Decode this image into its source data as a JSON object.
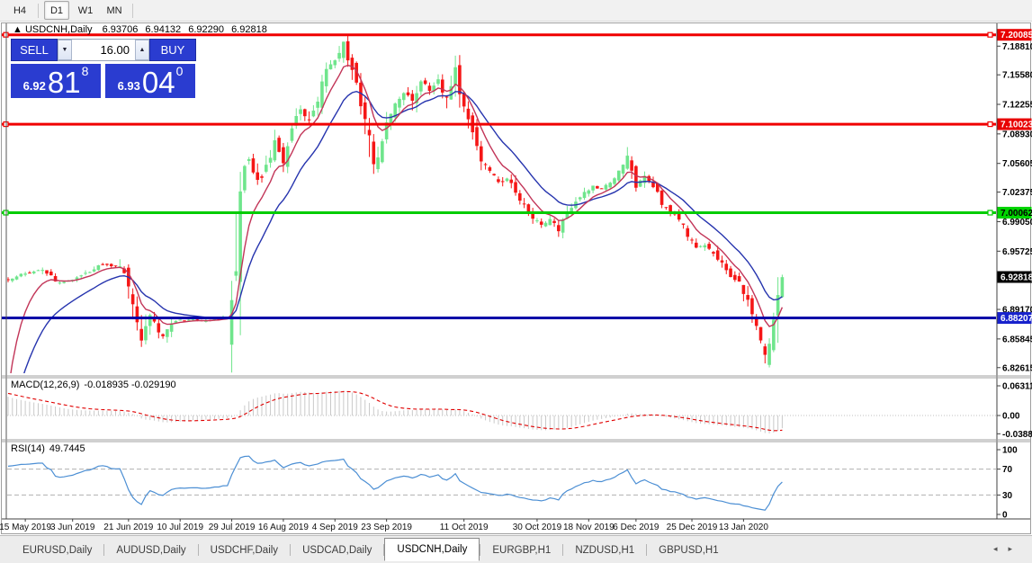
{
  "toolbar": {
    "buttons": [
      {
        "label": "H4",
        "active": false
      },
      {
        "label": "D1",
        "active": true
      },
      {
        "label": "W1",
        "active": false
      },
      {
        "label": "MN",
        "active": false
      }
    ]
  },
  "chart": {
    "title": {
      "arrow": "▲",
      "symbol": "USDCNH,Daily",
      "open": "6.93706",
      "high": "6.94132",
      "low": "6.92290",
      "close": "6.92818"
    }
  },
  "trade_panel": {
    "sell_label": "SELL",
    "buy_label": "BUY",
    "volume": "16.00",
    "spin_down": "▼",
    "spin_up": "▲",
    "sell_price": {
      "prefix": "6.92",
      "big": "81",
      "sup": "8"
    },
    "buy_price": {
      "prefix": "6.93",
      "big": "04",
      "sup": "0"
    }
  },
  "colors": {
    "bull": "#6FE58C",
    "bear": "#F51616",
    "ma_fast": "#C23558",
    "ma_slow": "#2634AE",
    "macd_hist": "#C9C9C9",
    "macd_signal": "#E00000",
    "rsi_line": "#4C8FD4",
    "hline_red": "#F00000",
    "hline_green": "#00CC00",
    "hline_blue": "#0000A8",
    "badge_red": "#E80000",
    "badge_green": "#00D400",
    "badge_blue": "#1822CC",
    "badge_black": "#000000"
  },
  "chart_data": {
    "type": "candlestick",
    "symbol": "USDCNH",
    "timeframe": "Daily",
    "candle_count": 181,
    "ylim": [
      6.82615,
      7.20085
    ],
    "price_waypoints": [
      [
        0,
        6.926
      ],
      [
        4,
        6.932
      ],
      [
        8,
        6.936
      ],
      [
        12,
        6.921
      ],
      [
        16,
        6.927
      ],
      [
        20,
        6.938
      ],
      [
        22,
        6.942
      ],
      [
        26,
        6.939
      ],
      [
        28,
        6.92
      ],
      [
        31,
        6.856
      ],
      [
        33,
        6.887
      ],
      [
        36,
        6.858
      ],
      [
        38,
        6.878
      ],
      [
        42,
        6.88
      ],
      [
        46,
        6.879
      ],
      [
        50,
        6.882
      ],
      [
        52,
        6.886
      ],
      [
        53,
        6.96
      ],
      [
        54,
        7.048
      ],
      [
        56,
        7.058
      ],
      [
        58,
        7.035
      ],
      [
        60,
        7.05
      ],
      [
        62,
        7.078
      ],
      [
        64,
        7.06
      ],
      [
        66,
        7.092
      ],
      [
        68,
        7.118
      ],
      [
        70,
        7.102
      ],
      [
        72,
        7.13
      ],
      [
        74,
        7.158
      ],
      [
        76,
        7.172
      ],
      [
        78,
        7.19
      ],
      [
        80,
        7.162
      ],
      [
        82,
        7.122
      ],
      [
        84,
        7.08
      ],
      [
        85,
        7.048
      ],
      [
        86,
        7.07
      ],
      [
        88,
        7.098
      ],
      [
        90,
        7.12
      ],
      [
        92,
        7.138
      ],
      [
        94,
        7.122
      ],
      [
        96,
        7.15
      ],
      [
        98,
        7.14
      ],
      [
        100,
        7.148
      ],
      [
        102,
        7.13
      ],
      [
        104,
        7.158
      ],
      [
        106,
        7.12
      ],
      [
        108,
        7.09
      ],
      [
        110,
        7.062
      ],
      [
        112,
        7.05
      ],
      [
        114,
        7.032
      ],
      [
        116,
        7.042
      ],
      [
        118,
        7.022
      ],
      [
        120,
        7.01
      ],
      [
        122,
        6.996
      ],
      [
        124,
        6.986
      ],
      [
        126,
        6.992
      ],
      [
        128,
        6.983
      ],
      [
        130,
        7.0
      ],
      [
        132,
        7.012
      ],
      [
        134,
        7.022
      ],
      [
        136,
        7.03
      ],
      [
        138,
        7.026
      ],
      [
        140,
        7.036
      ],
      [
        143,
        7.052
      ],
      [
        144,
        7.062
      ],
      [
        146,
        7.032
      ],
      [
        148,
        7.042
      ],
      [
        150,
        7.03
      ],
      [
        152,
        7.012
      ],
      [
        154,
        7.0
      ],
      [
        156,
        6.996
      ],
      [
        158,
        6.976
      ],
      [
        160,
        6.962
      ],
      [
        162,
        6.966
      ],
      [
        164,
        6.956
      ],
      [
        166,
        6.942
      ],
      [
        168,
        6.93
      ],
      [
        170,
        6.921
      ],
      [
        172,
        6.9
      ],
      [
        174,
        6.872
      ],
      [
        175,
        6.86
      ],
      [
        176,
        6.845
      ],
      [
        177,
        6.852
      ],
      [
        178,
        6.878
      ],
      [
        179,
        6.916
      ],
      [
        180,
        6.928
      ]
    ],
    "price_ticks": [
      "7.18810",
      "7.15580",
      "7.12255",
      "7.08930",
      "7.05605",
      "7.02375",
      "6.99050",
      "6.95725",
      "6.92495",
      "6.89170",
      "6.85845",
      "6.82615"
    ],
    "badges": [
      {
        "label": "7.20085",
        "price": 7.20085,
        "bg": "badge_red",
        "fg": "#ffffff"
      },
      {
        "label": "7.10023",
        "price": 7.10023,
        "bg": "badge_red",
        "fg": "#ffffff"
      },
      {
        "label": "7.00062",
        "price": 7.00062,
        "bg": "badge_green",
        "fg": "#000000"
      },
      {
        "label": "6.92818",
        "price": 6.92818,
        "bg": "badge_black",
        "fg": "#ffffff"
      },
      {
        "label": "6.88207",
        "price": 6.88207,
        "bg": "badge_blue",
        "fg": "#ffffff"
      }
    ],
    "hlines": [
      {
        "price": 7.20085,
        "color_key": "hline_red",
        "width": 3,
        "anchors": true
      },
      {
        "price": 7.10023,
        "color_key": "hline_red",
        "width": 3,
        "anchors": true
      },
      {
        "price": 7.00062,
        "color_key": "hline_green",
        "width": 3,
        "anchors": true
      },
      {
        "price": 6.88207,
        "color_key": "hline_blue",
        "width": 3,
        "anchors": false
      }
    ],
    "date_labels": [
      {
        "t": "15 May 2019",
        "i": 4
      },
      {
        "t": "3 Jun 2019",
        "i": 15
      },
      {
        "t": "21 Jun 2019",
        "i": 28
      },
      {
        "t": "10 Jul 2019",
        "i": 40
      },
      {
        "t": "29 Jul 2019",
        "i": 52
      },
      {
        "t": "16 Aug 2019",
        "i": 64
      },
      {
        "t": "4 Sep 2019",
        "i": 76
      },
      {
        "t": "23 Sep 2019",
        "i": 88
      },
      {
        "t": "11 Oct 2019",
        "i": 106
      },
      {
        "t": "30 Oct 2019",
        "i": 123
      },
      {
        "t": "18 Nov 2019",
        "i": 135
      },
      {
        "t": "6 Dec 2019",
        "i": 146
      },
      {
        "t": "25 Dec 2019",
        "i": 159
      },
      {
        "t": "13 Jan 2020",
        "i": 171
      }
    ],
    "indicators": {
      "ma_fast": {
        "period": 7,
        "seed": 6.8
      },
      "ma_slow": {
        "period": 16,
        "seed": 6.755
      },
      "macd": {
        "label": "MACD(12,26,9)",
        "values_text": "-0.018935 -0.029190",
        "ticks": [
          {
            "label": "0.063113",
            "v": 0.063113
          },
          {
            "label": "0.00",
            "v": 0
          },
          {
            "label": "-0.038877",
            "v": -0.038877
          }
        ]
      },
      "rsi": {
        "label": "RSI(14)",
        "value_text": "49.7445",
        "ticks": [
          {
            "label": "100",
            "v": 100
          },
          {
            "label": "70",
            "v": 70
          },
          {
            "label": "30",
            "v": 30
          },
          {
            "label": "0",
            "v": 0
          }
        ],
        "dashed_levels": [
          70,
          30
        ]
      }
    }
  },
  "tabs": {
    "items": [
      {
        "label": "EURUSD,Daily",
        "active": false
      },
      {
        "label": "AUDUSD,Daily",
        "active": false
      },
      {
        "label": "USDCHF,Daily",
        "active": false
      },
      {
        "label": "USDCAD,Daily",
        "active": false
      },
      {
        "label": "USDCNH,Daily",
        "active": true
      },
      {
        "label": "EURGBP,H1",
        "active": false
      },
      {
        "label": "NZDUSD,H1",
        "active": false
      },
      {
        "label": "GBPUSD,H1",
        "active": false
      }
    ],
    "scroll_left": "◂",
    "scroll_right": "▸"
  }
}
